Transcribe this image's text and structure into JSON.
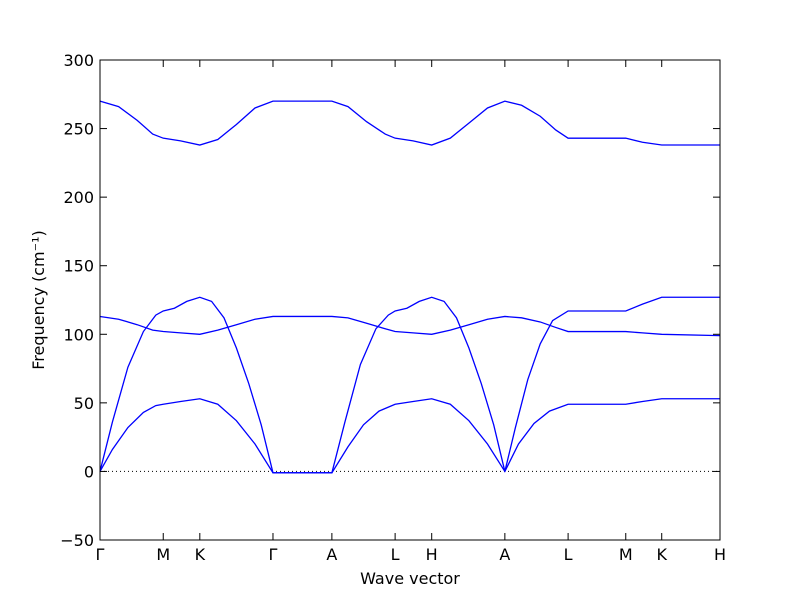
{
  "chart_data": {
    "type": "line",
    "xlabel": "Wave vector",
    "ylabel": "Frequency (cm⁻¹)",
    "ylim": [
      -50,
      300
    ],
    "yticks": [
      -50,
      0,
      50,
      100,
      150,
      200,
      250,
      300
    ],
    "xlim": [
      0,
      10
    ],
    "xticks": [
      {
        "label": "Γ",
        "x": 0
      },
      {
        "label": "M",
        "x": 1.02
      },
      {
        "label": "K",
        "x": 1.61
      },
      {
        "label": "Γ",
        "x": 2.79
      },
      {
        "label": "A",
        "x": 3.74
      },
      {
        "label": "L",
        "x": 4.76
      },
      {
        "label": "H",
        "x": 5.35
      },
      {
        "label": "A",
        "x": 6.53
      },
      {
        "label": "L",
        "x": 7.55
      },
      {
        "label": "M",
        "x": 8.48
      },
      {
        "label": "K",
        "x": 9.06
      },
      {
        "label": "H",
        "x": 10
      }
    ],
    "zero_line": {
      "y": 0,
      "style": "dotted"
    },
    "grid": false,
    "series": [
      {
        "points": [
          [
            0,
            270
          ],
          [
            0.3,
            266
          ],
          [
            0.6,
            256
          ],
          [
            0.85,
            246
          ],
          [
            1.02,
            243
          ],
          [
            1.3,
            241
          ],
          [
            1.61,
            238
          ],
          [
            1.9,
            242
          ],
          [
            2.2,
            253
          ],
          [
            2.5,
            265
          ],
          [
            2.79,
            270
          ],
          [
            3.74,
            270
          ],
          [
            4.0,
            266
          ],
          [
            4.3,
            255
          ],
          [
            4.6,
            246
          ],
          [
            4.76,
            243
          ],
          [
            5.05,
            241
          ],
          [
            5.35,
            238
          ],
          [
            5.65,
            243
          ],
          [
            5.95,
            254
          ],
          [
            6.25,
            265
          ],
          [
            6.53,
            270
          ],
          [
            6.8,
            267
          ],
          [
            7.1,
            259
          ],
          [
            7.35,
            249
          ],
          [
            7.55,
            243
          ],
          [
            8.48,
            243
          ],
          [
            8.75,
            240
          ],
          [
            9.06,
            238
          ],
          [
            10,
            238
          ]
        ]
      },
      {
        "points": [
          [
            0,
            113
          ],
          [
            0.3,
            111
          ],
          [
            0.6,
            107
          ],
          [
            0.85,
            103
          ],
          [
            1.02,
            102
          ],
          [
            1.3,
            101
          ],
          [
            1.61,
            100
          ],
          [
            1.9,
            103
          ],
          [
            2.2,
            107
          ],
          [
            2.5,
            111
          ],
          [
            2.79,
            113
          ],
          [
            3.74,
            113
          ],
          [
            4.0,
            112
          ],
          [
            4.3,
            108
          ],
          [
            4.6,
            104
          ],
          [
            4.76,
            102
          ],
          [
            5.05,
            101
          ],
          [
            5.35,
            100
          ],
          [
            5.65,
            103
          ],
          [
            5.95,
            107
          ],
          [
            6.25,
            111
          ],
          [
            6.53,
            113
          ],
          [
            6.8,
            112
          ],
          [
            7.1,
            109
          ],
          [
            7.35,
            105
          ],
          [
            7.55,
            102
          ],
          [
            8.48,
            102
          ],
          [
            8.75,
            101
          ],
          [
            9.06,
            100
          ],
          [
            10,
            99
          ]
        ]
      },
      {
        "points": [
          [
            0,
            0
          ],
          [
            0.2,
            36
          ],
          [
            0.45,
            76
          ],
          [
            0.7,
            102
          ],
          [
            0.9,
            114
          ],
          [
            1.02,
            117
          ],
          [
            1.2,
            119
          ],
          [
            1.4,
            124
          ],
          [
            1.61,
            127
          ],
          [
            1.8,
            124
          ],
          [
            2.0,
            112
          ],
          [
            2.2,
            90
          ],
          [
            2.4,
            64
          ],
          [
            2.6,
            34
          ],
          [
            2.79,
            -1
          ],
          [
            3.74,
            -1
          ],
          [
            3.95,
            36
          ],
          [
            4.2,
            78
          ],
          [
            4.45,
            104
          ],
          [
            4.65,
            114
          ],
          [
            4.76,
            117
          ],
          [
            4.95,
            119
          ],
          [
            5.15,
            124
          ],
          [
            5.35,
            127
          ],
          [
            5.55,
            124
          ],
          [
            5.75,
            112
          ],
          [
            5.95,
            90
          ],
          [
            6.15,
            64
          ],
          [
            6.35,
            34
          ],
          [
            6.53,
            0
          ],
          [
            6.7,
            32
          ],
          [
            6.9,
            67
          ],
          [
            7.1,
            93
          ],
          [
            7.3,
            110
          ],
          [
            7.55,
            117
          ],
          [
            8.48,
            117
          ],
          [
            8.75,
            122
          ],
          [
            9.06,
            127
          ],
          [
            10,
            127
          ]
        ]
      },
      {
        "points": [
          [
            0,
            0
          ],
          [
            0.2,
            16
          ],
          [
            0.45,
            32
          ],
          [
            0.7,
            43
          ],
          [
            0.9,
            48
          ],
          [
            1.02,
            49
          ],
          [
            1.3,
            51
          ],
          [
            1.61,
            53
          ],
          [
            1.9,
            49
          ],
          [
            2.2,
            37
          ],
          [
            2.5,
            20
          ],
          [
            2.79,
            -1
          ],
          [
            3.74,
            -1
          ],
          [
            4.0,
            18
          ],
          [
            4.25,
            34
          ],
          [
            4.5,
            44
          ],
          [
            4.76,
            49
          ],
          [
            5.05,
            51
          ],
          [
            5.35,
            53
          ],
          [
            5.65,
            49
          ],
          [
            5.95,
            37
          ],
          [
            6.25,
            20
          ],
          [
            6.53,
            0
          ],
          [
            6.75,
            20
          ],
          [
            7.0,
            35
          ],
          [
            7.25,
            44
          ],
          [
            7.55,
            49
          ],
          [
            8.48,
            49
          ],
          [
            8.75,
            51
          ],
          [
            9.06,
            53
          ],
          [
            10,
            53
          ]
        ]
      }
    ]
  }
}
